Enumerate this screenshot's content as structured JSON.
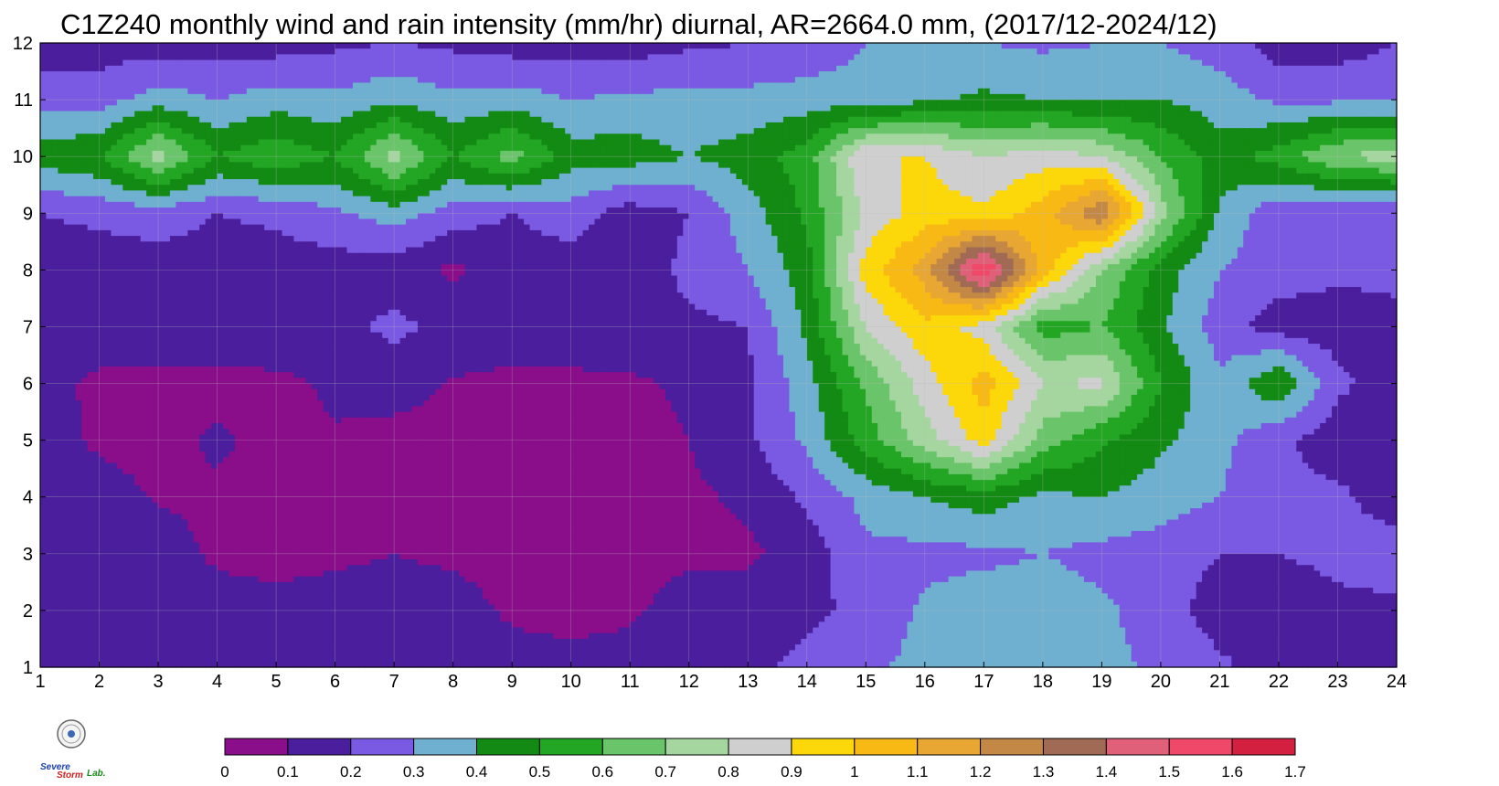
{
  "chart_data": {
    "type": "heatmap",
    "title": "C1Z240 monthly wind and rain intensity (mm/hr) diurnal, AR=2664.0 mm, (2017/12-2024/12)",
    "xlabel": "",
    "ylabel": "",
    "x_ticks": [
      "1",
      "2",
      "3",
      "4",
      "5",
      "6",
      "7",
      "8",
      "9",
      "10",
      "11",
      "12",
      "13",
      "14",
      "15",
      "16",
      "17",
      "18",
      "19",
      "20",
      "21",
      "22",
      "23",
      "24"
    ],
    "y_ticks": [
      "1",
      "2",
      "3",
      "4",
      "5",
      "6",
      "7",
      "8",
      "9",
      "10",
      "11",
      "12"
    ],
    "xlim": [
      1,
      24
    ],
    "ylim": [
      1,
      12
    ],
    "x_hours": [
      1,
      2,
      3,
      4,
      5,
      6,
      7,
      8,
      9,
      10,
      11,
      12,
      13,
      14,
      15,
      16,
      17,
      18,
      19,
      20,
      21,
      22,
      23,
      24
    ],
    "y_months": [
      1,
      2,
      3,
      4,
      5,
      6,
      7,
      8,
      9,
      10,
      11,
      12
    ],
    "values": [
      [
        0.15,
        0.15,
        0.15,
        0.15,
        0.15,
        0.15,
        0.18,
        0.15,
        0.15,
        0.15,
        0.15,
        0.18,
        0.18,
        0.22,
        0.28,
        0.33,
        0.34,
        0.33,
        0.33,
        0.28,
        0.22,
        0.15,
        0.15,
        0.15
      ],
      [
        0.15,
        0.15,
        0.15,
        0.15,
        0.15,
        0.15,
        0.15,
        0.15,
        0.08,
        0.05,
        0.08,
        0.15,
        0.15,
        0.18,
        0.22,
        0.32,
        0.35,
        0.35,
        0.32,
        0.25,
        0.15,
        0.15,
        0.18,
        0.18
      ],
      [
        0.15,
        0.15,
        0.15,
        0.08,
        0.05,
        0.08,
        0.1,
        0.08,
        0.05,
        0.04,
        0.06,
        0.08,
        0.08,
        0.15,
        0.28,
        0.27,
        0.28,
        0.3,
        0.27,
        0.25,
        0.2,
        0.2,
        0.22,
        0.25
      ],
      [
        0.15,
        0.15,
        0.09,
        0.08,
        0.06,
        0.05,
        0.08,
        0.06,
        0.05,
        0.04,
        0.05,
        0.08,
        0.12,
        0.22,
        0.33,
        0.4,
        0.45,
        0.38,
        0.4,
        0.35,
        0.3,
        0.22,
        0.22,
        0.15
      ],
      [
        0.15,
        0.08,
        0.06,
        0.12,
        0.06,
        0.09,
        0.06,
        0.06,
        0.05,
        0.04,
        0.06,
        0.1,
        0.18,
        0.32,
        0.55,
        0.75,
        0.95,
        0.65,
        0.52,
        0.42,
        0.33,
        0.22,
        0.15,
        0.15
      ],
      [
        0.15,
        0.07,
        0.06,
        0.06,
        0.07,
        0.12,
        0.15,
        0.09,
        0.06,
        0.07,
        0.08,
        0.12,
        0.18,
        0.36,
        0.62,
        0.85,
        1.05,
        0.8,
        0.82,
        0.5,
        0.32,
        0.5,
        0.22,
        0.15
      ],
      [
        0.2,
        0.18,
        0.18,
        0.18,
        0.2,
        0.18,
        0.22,
        0.18,
        0.2,
        0.18,
        0.2,
        0.18,
        0.2,
        0.42,
        0.8,
        0.98,
        0.85,
        0.55,
        0.6,
        0.42,
        0.25,
        0.15,
        0.15,
        0.18
      ],
      [
        0.15,
        0.15,
        0.15,
        0.15,
        0.15,
        0.15,
        0.15,
        0.08,
        0.15,
        0.15,
        0.15,
        0.22,
        0.3,
        0.45,
        0.95,
        1.15,
        1.62,
        1.05,
        0.7,
        0.45,
        0.3,
        0.25,
        0.22,
        0.22
      ],
      [
        0.2,
        0.22,
        0.25,
        0.2,
        0.22,
        0.28,
        0.35,
        0.25,
        0.2,
        0.25,
        0.15,
        0.2,
        0.35,
        0.52,
        0.82,
        0.95,
        0.92,
        1.05,
        1.3,
        0.75,
        0.38,
        0.22,
        0.2,
        0.2
      ],
      [
        0.45,
        0.5,
        0.75,
        0.5,
        0.58,
        0.5,
        0.75,
        0.5,
        0.65,
        0.45,
        0.45,
        0.4,
        0.45,
        0.55,
        0.9,
        0.9,
        0.8,
        0.85,
        0.8,
        0.6,
        0.45,
        0.55,
        0.7,
        0.75
      ],
      [
        0.25,
        0.25,
        0.35,
        0.3,
        0.35,
        0.32,
        0.38,
        0.32,
        0.35,
        0.3,
        0.32,
        0.33,
        0.33,
        0.35,
        0.35,
        0.38,
        0.42,
        0.4,
        0.38,
        0.4,
        0.35,
        0.28,
        0.28,
        0.28
      ],
      [
        0.15,
        0.15,
        0.15,
        0.15,
        0.15,
        0.18,
        0.2,
        0.18,
        0.15,
        0.15,
        0.15,
        0.18,
        0.2,
        0.22,
        0.3,
        0.3,
        0.3,
        0.28,
        0.3,
        0.3,
        0.25,
        0.15,
        0.15,
        0.2
      ]
    ],
    "colorbar": {
      "levels": [
        0,
        0.1,
        0.2,
        0.3,
        0.4,
        0.5,
        0.6,
        0.7,
        0.8,
        0.9,
        1,
        1.1,
        1.2,
        1.3,
        1.4,
        1.5,
        1.6,
        1.7
      ],
      "labels": [
        "0",
        "0.1",
        "0.2",
        "0.3",
        "0.4",
        "0.5",
        "0.6",
        "0.7",
        "0.8",
        "0.9",
        "1",
        "1.1",
        "1.2",
        "1.3",
        "1.4",
        "1.5",
        "1.6",
        "1.7"
      ],
      "colors": [
        "#8a0e8a",
        "#4a1e9c",
        "#7a5ae2",
        "#6fb0d0",
        "#138a13",
        "#23a623",
        "#6ac46a",
        "#a5d6a0",
        "#cfcfcf",
        "#fcd80a",
        "#f9b915",
        "#e8a632",
        "#c38845",
        "#a06a55",
        "#e0607a",
        "#f04868",
        "#d42040"
      ]
    },
    "contour_line_color": "#f5a623",
    "grid": true,
    "legend": "bottom (horizontal colorbar)"
  },
  "logo": {
    "line1": "Severe",
    "line2": "Storm",
    "line3": "Lab."
  }
}
